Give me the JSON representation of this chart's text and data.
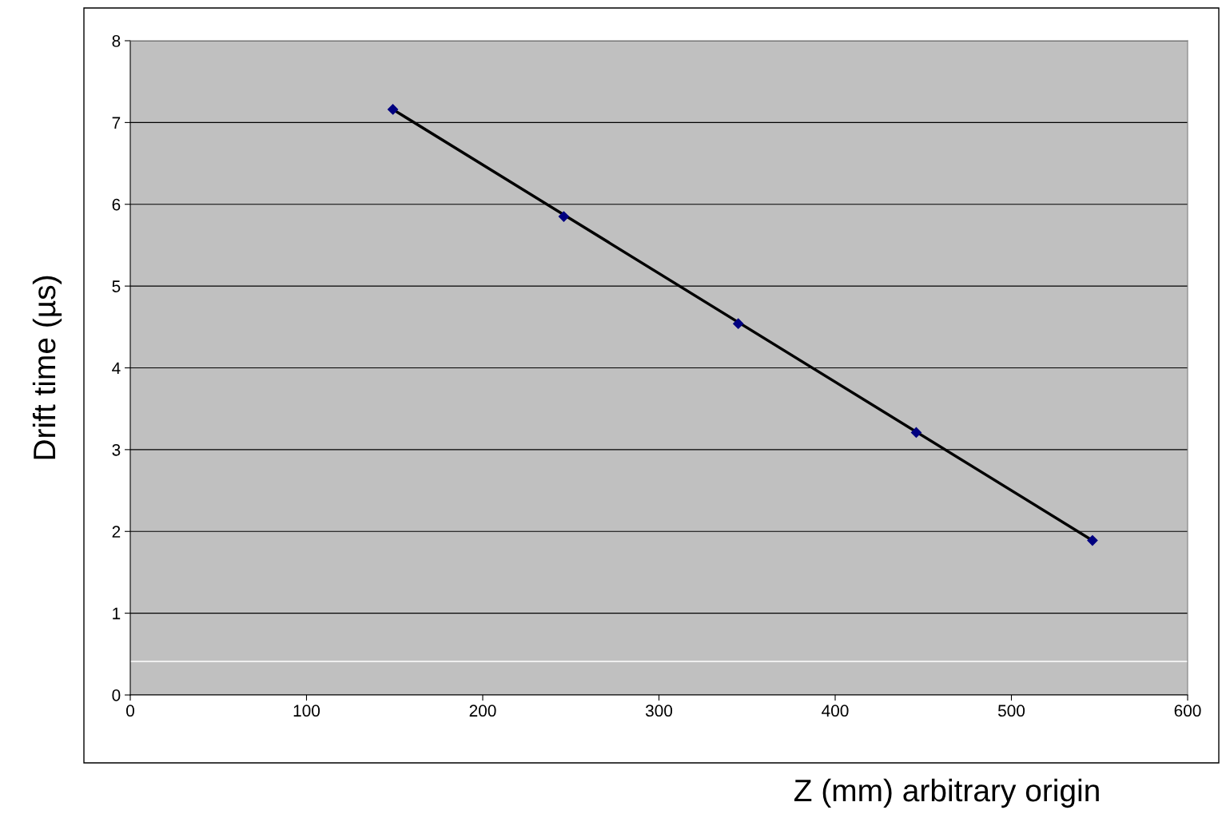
{
  "chart_data": {
    "type": "scatter",
    "xlabel": "Z (mm) arbitrary origin",
    "ylabel": "Drift time (µs)",
    "xlim": [
      0,
      600
    ],
    "xticks": [
      0,
      100,
      200,
      300,
      400,
      500,
      600
    ],
    "ylim": [
      0,
      8
    ],
    "yticks": [
      0,
      1,
      2,
      3,
      4,
      5,
      6,
      7,
      8
    ],
    "grid": "y",
    "marker": "diamond",
    "series": [
      {
        "color": "#000080",
        "x": [
          149,
          246,
          345,
          446,
          546
        ],
        "values": [
          7.16,
          5.85,
          4.54,
          3.21,
          1.89
        ]
      },
      {
        "type": "line",
        "color": "#000000",
        "line_style": "solid",
        "marker": "none",
        "x": [
          149,
          546
        ],
        "values": [
          7.16,
          1.89
        ]
      }
    ],
    "ref_lines": [
      {
        "axis": "y",
        "value": 0.41,
        "label": null,
        "color": "#ffffff"
      }
    ]
  }
}
